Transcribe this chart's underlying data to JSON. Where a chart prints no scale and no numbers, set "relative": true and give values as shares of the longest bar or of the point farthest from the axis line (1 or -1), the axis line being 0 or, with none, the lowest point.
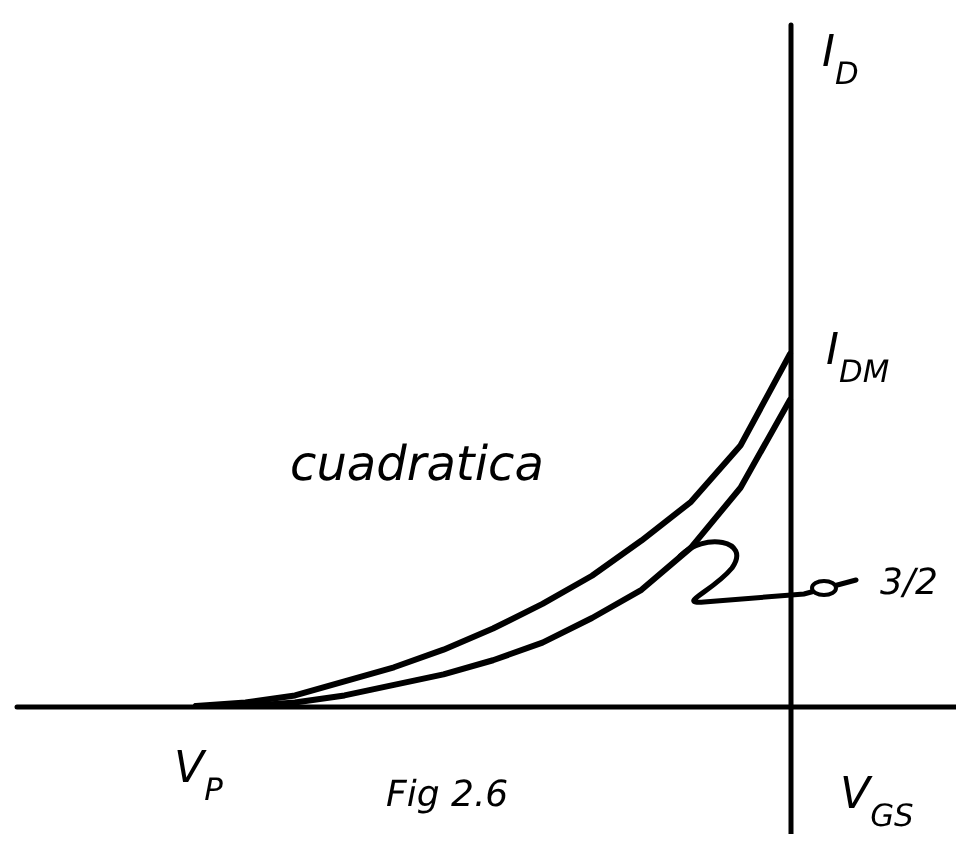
{
  "chart_data": {
    "type": "line",
    "relative": true,
    "xlabel": "V$_{GS}$",
    "categories": [
      null,
      null,
      null,
      null,
      null,
      null,
      null,
      null,
      null,
      null,
      null,
      null,
      null
    ],
    "series": [
      {
        "name": "cuadratica",
        "color": "#000000",
        "values": [
          0,
          0.01,
          0.03,
          0.07,
          0.11,
          0.16,
          0.22,
          0.29,
          0.37,
          0.47,
          0.58,
          0.74,
          1
        ]
      },
      {
        "name": "3/2",
        "color": "#000000",
        "values": [
          0,
          0,
          0.01,
          0.03,
          0.06,
          0.09,
          0.13,
          0.18,
          0.25,
          0.33,
          0.45,
          0.62,
          0.87
        ]
      }
    ],
    "annotations": [
      "I$_{DM}$",
      "Fig 2.6",
      "V$_{P}$",
      "I$_{D}$"
    ],
    "grid": false,
    "marker": "none",
    "line_style": "solid"
  }
}
